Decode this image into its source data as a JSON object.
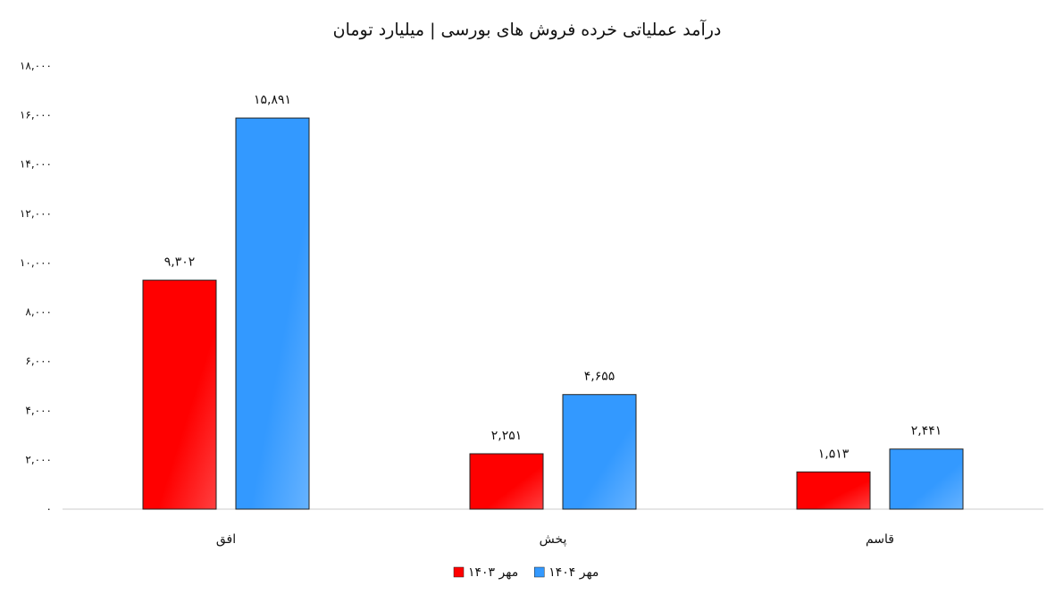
{
  "chart_data": {
    "type": "bar",
    "title": "درآمد عملیاتی خرده فروش های بورسی | میلیارد تومان",
    "categories": [
      "افق",
      "پخش",
      "قاسم"
    ],
    "series": [
      {
        "name": "مهر ۱۴۰۳",
        "color": "#ff0000",
        "values": [
          9302,
          2251,
          1513
        ],
        "value_labels": [
          "۹,۳۰۲",
          "۲,۲۵۱",
          "۱,۵۱۳"
        ]
      },
      {
        "name": "مهر ۱۴۰۴",
        "color": "#3399ff",
        "values": [
          15891,
          4655,
          2441
        ],
        "value_labels": [
          "۱۵,۸۹۱",
          "۴,۶۵۵",
          "۲,۴۴۱"
        ]
      }
    ],
    "ylim": [
      0,
      18000
    ],
    "yticks": [
      {
        "value": 0,
        "label": "۰"
      },
      {
        "value": 2000,
        "label": "۲,۰۰۰"
      },
      {
        "value": 4000,
        "label": "۴,۰۰۰"
      },
      {
        "value": 6000,
        "label": "۶,۰۰۰"
      },
      {
        "value": 8000,
        "label": "۸,۰۰۰"
      },
      {
        "value": 10000,
        "label": "۱۰,۰۰۰"
      },
      {
        "value": 12000,
        "label": "۱۲,۰۰۰"
      },
      {
        "value": 14000,
        "label": "۱۴,۰۰۰"
      },
      {
        "value": 16000,
        "label": "۱۶,۰۰۰"
      },
      {
        "value": 18000,
        "label": "۱۸,۰۰۰"
      }
    ],
    "grid": false,
    "legend": "bottom"
  }
}
